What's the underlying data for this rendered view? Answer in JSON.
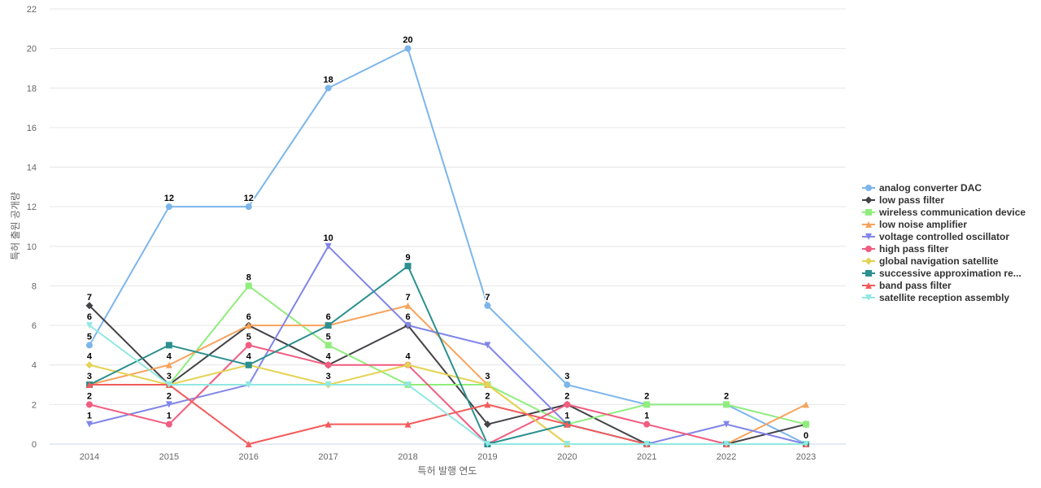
{
  "chart_data": {
    "type": "line",
    "title": "",
    "xlabel": "특허 발행 연도",
    "ylabel": "특허 출원 공개량",
    "categories": [
      "2014",
      "2015",
      "2016",
      "2017",
      "2018",
      "2019",
      "2020",
      "2021",
      "2022",
      "2023"
    ],
    "ylim": [
      0,
      22
    ],
    "yticks": [
      0,
      2,
      4,
      6,
      8,
      10,
      12,
      14,
      16,
      18,
      20,
      22
    ],
    "grid": true,
    "legend_position": "right",
    "series": [
      {
        "name": "analog converter DAC",
        "color": "#7cb5ec",
        "marker": "circle",
        "values": [
          5,
          12,
          12,
          18,
          20,
          7,
          3,
          2,
          2,
          0
        ]
      },
      {
        "name": "low pass filter",
        "color": "#434348",
        "marker": "diamond",
        "values": [
          7,
          3,
          6,
          4,
          6,
          1,
          2,
          0,
          0,
          1
        ]
      },
      {
        "name": "wireless communication device",
        "color": "#90ed7d",
        "marker": "square",
        "values": [
          3,
          3,
          8,
          5,
          3,
          3,
          1,
          2,
          2,
          1
        ]
      },
      {
        "name": "low noise amplifier",
        "color": "#f7a35c",
        "marker": "triangle",
        "values": [
          3,
          4,
          6,
          6,
          7,
          3,
          0,
          0,
          0,
          2
        ]
      },
      {
        "name": "voltage controlled oscillator",
        "color": "#8085e9",
        "marker": "triangle-down",
        "values": [
          1,
          2,
          3,
          10,
          6,
          5,
          1,
          0,
          1,
          0
        ]
      },
      {
        "name": "high pass filter",
        "color": "#f15c80",
        "marker": "circle",
        "values": [
          2,
          1,
          5,
          4,
          4,
          0,
          2,
          1,
          0,
          0
        ]
      },
      {
        "name": "global navigation satellite",
        "color": "#e4d354",
        "marker": "diamond",
        "values": [
          4,
          3,
          4,
          3,
          4,
          3,
          0,
          0,
          0,
          0
        ]
      },
      {
        "name": "successive approximation re...",
        "color": "#2b908f",
        "marker": "square",
        "values": [
          3,
          5,
          4,
          6,
          9,
          0,
          1,
          0,
          0,
          0
        ]
      },
      {
        "name": "band pass filter",
        "color": "#f45b5b",
        "marker": "triangle",
        "values": [
          3,
          3,
          0,
          1,
          1,
          2,
          1,
          0,
          0,
          0
        ]
      },
      {
        "name": "satellite reception assembly",
        "color": "#91e8e1",
        "marker": "triangle-down",
        "values": [
          6,
          3,
          3,
          3,
          3,
          0,
          0,
          0,
          0,
          0
        ]
      }
    ],
    "data_labels": [
      {
        "series": 0,
        "index": 0
      },
      {
        "series": 0,
        "index": 1
      },
      {
        "series": 0,
        "index": 2
      },
      {
        "series": 0,
        "index": 3
      },
      {
        "series": 0,
        "index": 4
      },
      {
        "series": 0,
        "index": 5
      },
      {
        "series": 0,
        "index": 6
      },
      {
        "series": 0,
        "index": 7
      },
      {
        "series": 0,
        "index": 8
      },
      {
        "series": 0,
        "index": 9
      },
      {
        "series": 1,
        "index": 0
      },
      {
        "series": 1,
        "index": 2
      },
      {
        "series": 1,
        "index": 4
      },
      {
        "series": 2,
        "index": 2
      },
      {
        "series": 2,
        "index": 3
      },
      {
        "series": 2,
        "index": 5
      },
      {
        "series": 3,
        "index": 1
      },
      {
        "series": 3,
        "index": 4
      },
      {
        "series": 4,
        "index": 0
      },
      {
        "series": 4,
        "index": 1
      },
      {
        "series": 4,
        "index": 3
      },
      {
        "series": 4,
        "index": 6
      },
      {
        "series": 5,
        "index": 0
      },
      {
        "series": 5,
        "index": 1
      },
      {
        "series": 5,
        "index": 2
      },
      {
        "series": 5,
        "index": 3
      },
      {
        "series": 5,
        "index": 6
      },
      {
        "series": 5,
        "index": 7
      },
      {
        "series": 6,
        "index": 0
      },
      {
        "series": 6,
        "index": 1
      },
      {
        "series": 6,
        "index": 2
      },
      {
        "series": 6,
        "index": 3
      },
      {
        "series": 6,
        "index": 4
      },
      {
        "series": 6,
        "index": 5
      },
      {
        "series": 7,
        "index": 3
      },
      {
        "series": 7,
        "index": 4
      },
      {
        "series": 8,
        "index": 0
      },
      {
        "series": 8,
        "index": 5
      },
      {
        "series": 9,
        "index": 0
      }
    ]
  }
}
